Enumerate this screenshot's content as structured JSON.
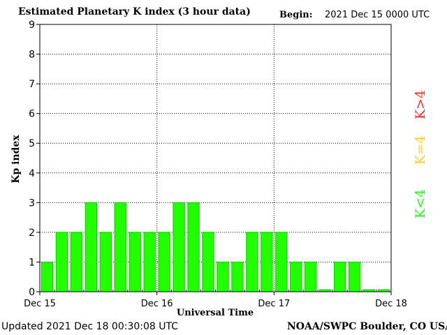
{
  "header": {
    "title": "Estimated Planetary K index (3 hour data)",
    "begin_label": "Begin:",
    "begin_value": "2021 Dec 15 0000 UTC"
  },
  "footer": {
    "updated": "Updated 2021 Dec 18 00:30:08 UTC",
    "credit": "NOAA/SWPC Boulder, CO USA"
  },
  "legend": [
    {
      "label": "K>4",
      "color": "#ff2a2a"
    },
    {
      "label": "K=4",
      "color": "#ffd21a"
    },
    {
      "label": "K<4",
      "color": "#27f51f"
    }
  ],
  "colors": {
    "bar": "#22ff00",
    "bar_outline": "#14c800"
  },
  "chart_data": {
    "type": "bar",
    "title": "Estimated Planetary K index (3 hour data)",
    "xlabel": "Universal Time",
    "ylabel": "Kp index",
    "ylim": [
      0,
      9
    ],
    "yticks": [
      "0",
      "1",
      "2",
      "3",
      "4",
      "5",
      "6",
      "7",
      "8",
      "9"
    ],
    "xticks": [
      "Dec 15",
      "Dec 16",
      "Dec 17",
      "Dec 18"
    ],
    "grid": true,
    "legend_placement": "right",
    "interval_hours": 3,
    "values": [
      1,
      2,
      2,
      3,
      2,
      3,
      2,
      2,
      2,
      3,
      3,
      2,
      1,
      1,
      2,
      2,
      2,
      1,
      1,
      0,
      1,
      1,
      0,
      0
    ]
  }
}
